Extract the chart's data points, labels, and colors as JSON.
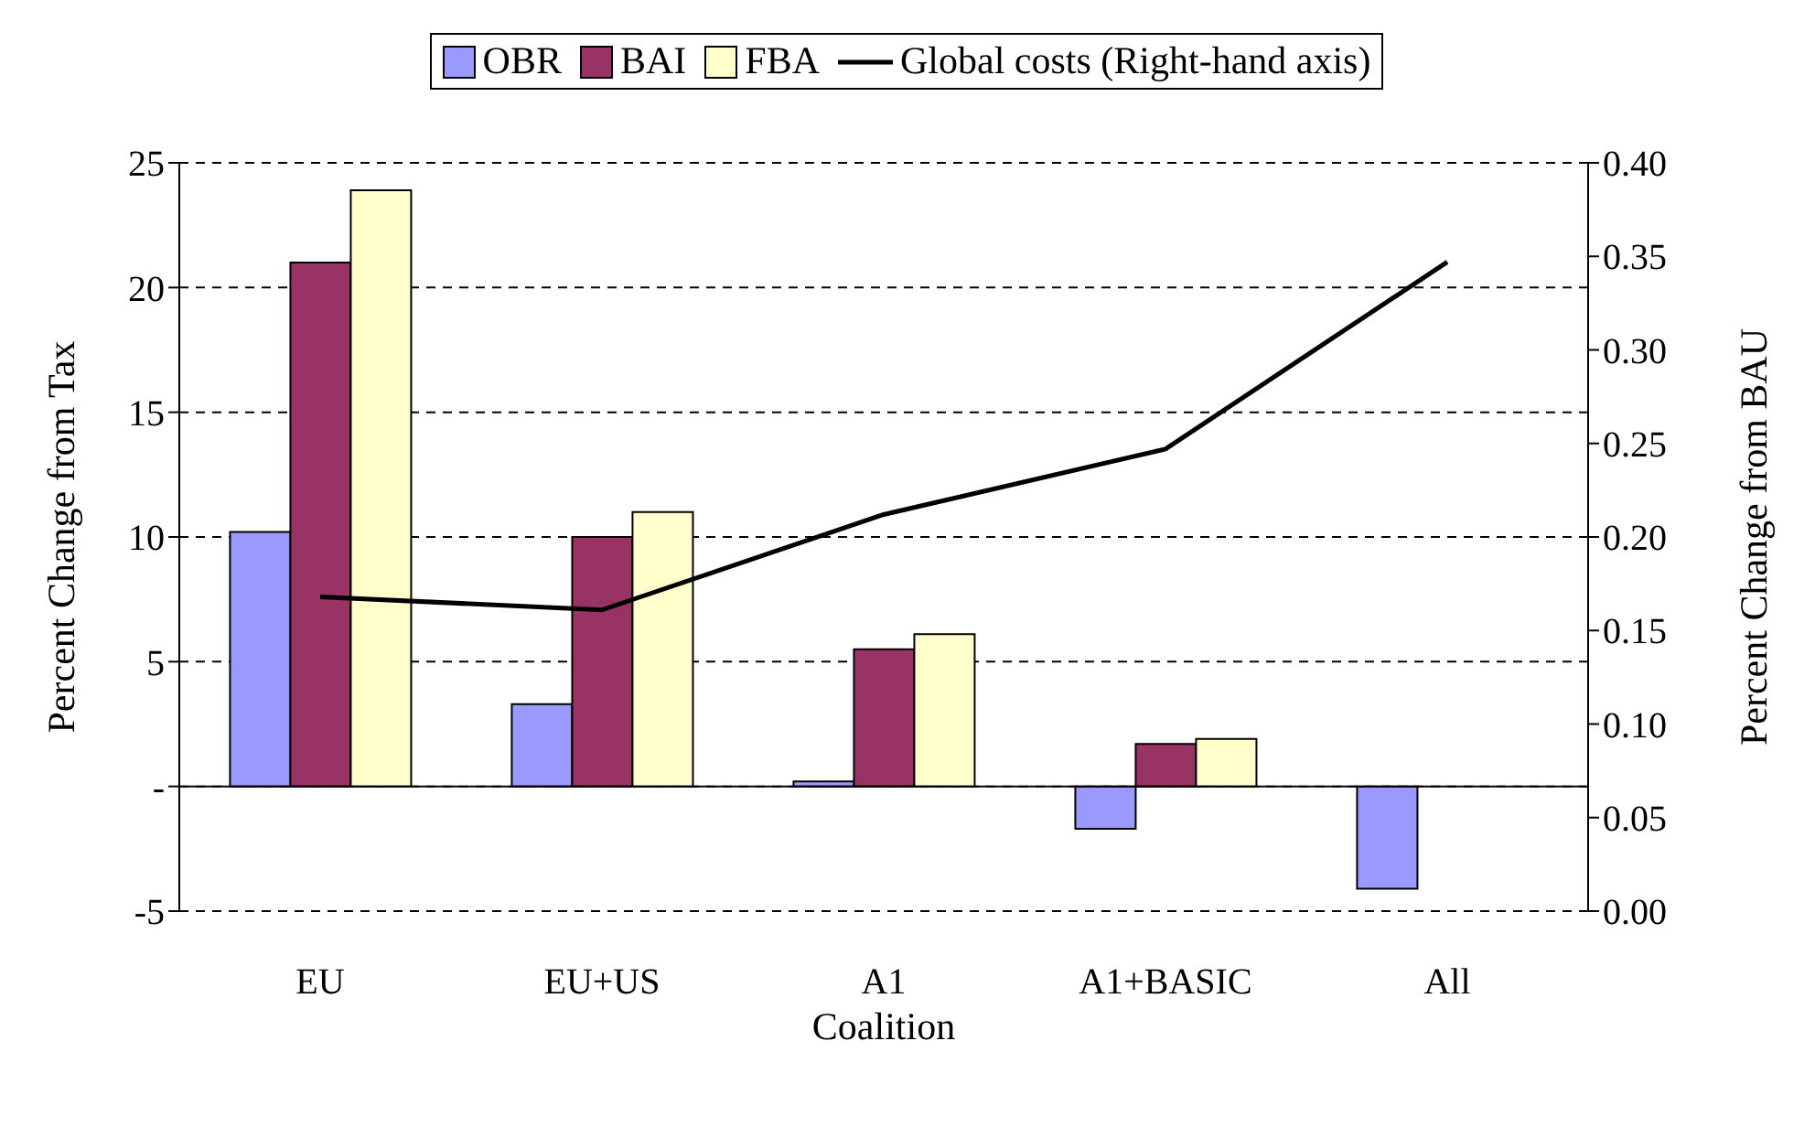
{
  "chart_data": {
    "type": "bar",
    "xlabel": "Coalition",
    "ylabel": "Percent Change from Tax",
    "y2label": "Percent Change from BAU",
    "categories": [
      "EU",
      "EU+US",
      "A1",
      "A1+BASIC",
      "All"
    ],
    "series": [
      {
        "name": "OBR",
        "color": "#9999ff",
        "values": [
          10.2,
          3.3,
          0.2,
          -1.7,
          -4.1
        ]
      },
      {
        "name": "BAI",
        "color": "#993366",
        "values": [
          21,
          10,
          5.5,
          1.7,
          null
        ]
      },
      {
        "name": "FBA",
        "color": "#ffffcc",
        "values": [
          23.9,
          11,
          6.1,
          1.9,
          null
        ]
      },
      {
        "name": "Global costs (Right-hand axis)",
        "type": "line",
        "axis": "y2",
        "color": "#000000",
        "values": [
          0.168,
          0.161,
          0.212,
          0.247,
          0.347
        ]
      }
    ],
    "ylim": [
      -5,
      25
    ],
    "yticks": [
      -5,
      {
        "value": 0,
        "label": "-"
      },
      5,
      10,
      15,
      20,
      25
    ],
    "y2lim": [
      0,
      0.4
    ],
    "y2ticks": [
      {
        "value": 0,
        "label": "0.00"
      },
      {
        "value": 0.05,
        "label": "0.05"
      },
      {
        "value": 0.1,
        "label": "0.10"
      },
      {
        "value": 0.15,
        "label": "0.15"
      },
      {
        "value": 0.2,
        "label": "0.20"
      },
      {
        "value": 0.25,
        "label": "0.25"
      },
      {
        "value": 0.3,
        "label": "0.30"
      },
      {
        "value": 0.35,
        "label": "0.35"
      },
      {
        "value": 0.4,
        "label": "0.40"
      }
    ],
    "grid": "y",
    "legend": "top",
    "marker": "none",
    "line_style": "solid"
  }
}
